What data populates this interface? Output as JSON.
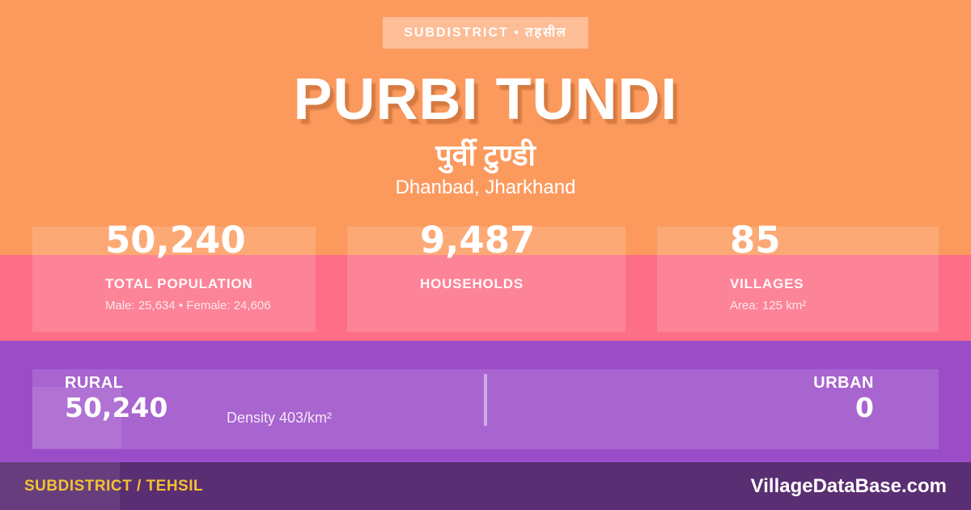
{
  "badge": {
    "label": "SUBDISTRICT • तहसील"
  },
  "header": {
    "title": "PURBI TUNDI",
    "subtitle_hindi": "पुर्वी टुण्डी",
    "location": "Dhanbad, Jharkhand"
  },
  "stats": [
    {
      "value": "50,240",
      "label": "TOTAL POPULATION",
      "detail": "Male: 25,634 • Female: 24,606"
    },
    {
      "value": "9,487",
      "label": "HOUSEHOLDS",
      "detail": ""
    },
    {
      "value": "85",
      "label": "VILLAGES",
      "detail": "Area: 125 km²"
    }
  ],
  "rural_urban": {
    "rural_label": "RURAL",
    "rural_value": "50,240",
    "density": "Density 403/km²",
    "urban_label": "URBAN",
    "urban_value": "0"
  },
  "footer": {
    "left": "SUBDISTRICT / TEHSIL",
    "right": "VillageDataBase.com"
  },
  "colors": {
    "orange": "#fc9a5e",
    "pink": "#fd6e87",
    "purple": "#9b4dc8",
    "footer_purple": "#5a2e72",
    "accent_yellow": "#f2c230"
  }
}
